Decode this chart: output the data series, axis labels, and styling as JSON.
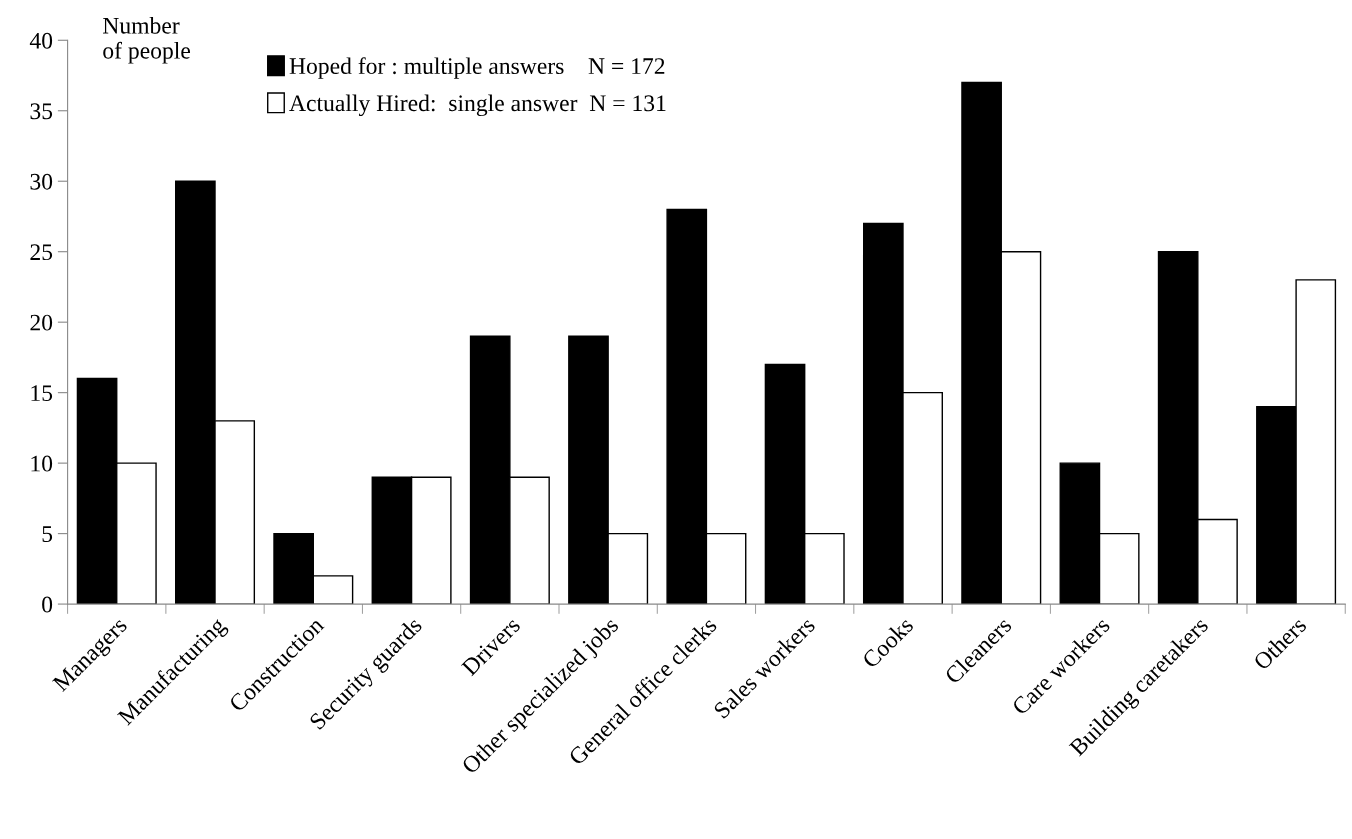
{
  "chart_data": {
    "type": "bar",
    "ylabel": "Number\nof people",
    "categories": [
      "Managers",
      "Manufacturing",
      "Construction",
      "Security guards",
      "Drivers",
      "Other specialized jobs",
      "General office clerks",
      "Sales workers",
      "Cooks",
      "Cleaners",
      "Care workers",
      "Building caretakers",
      "Others"
    ],
    "series": [
      {
        "name": "Hoped for : multiple answers    N = 172",
        "color": "#000000",
        "values": [
          16,
          30,
          5,
          9,
          19,
          19,
          28,
          17,
          27,
          37,
          10,
          25,
          14
        ]
      },
      {
        "name": "Actually Hired:  single answer  N = 131",
        "color": "#ffffff",
        "values": [
          10,
          13,
          2,
          9,
          9,
          5,
          5,
          5,
          15,
          25,
          5,
          6,
          23
        ]
      }
    ],
    "ylim": [
      0,
      40
    ],
    "yticks": [
      0,
      5,
      10,
      15,
      20,
      25,
      30,
      35,
      40
    ],
    "grid": false,
    "legend": "top left"
  }
}
